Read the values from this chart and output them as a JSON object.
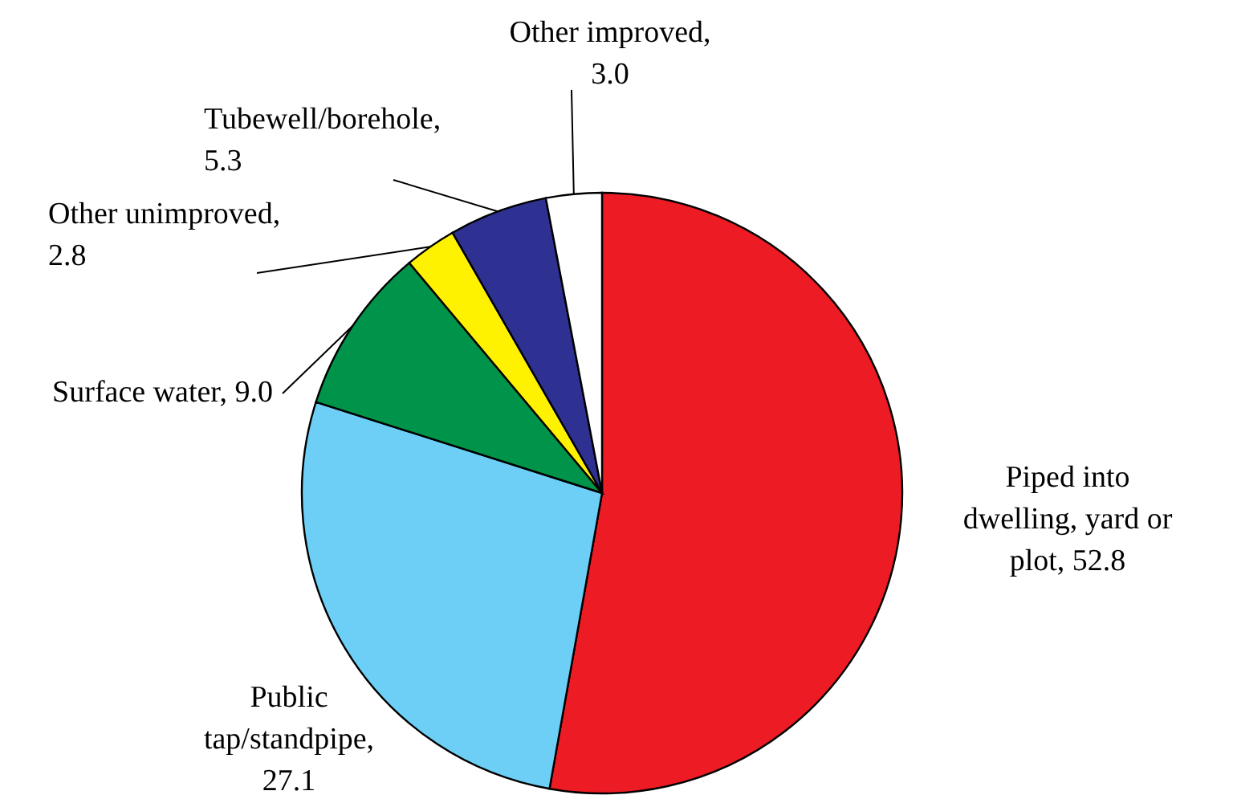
{
  "chart_data": {
    "type": "pie",
    "categories": [
      "Piped into dwelling, yard or plot, 52.8",
      "Public tap/standpipe, 27.1",
      "Surface water, 9.0",
      "Other unimproved, 2.8",
      "Tubewell/borehole, 5.3",
      "Other improved, 3.0"
    ],
    "values": [
      52.8,
      27.1,
      9.0,
      2.8,
      5.3,
      3.0
    ],
    "colors": [
      "#ed1c24",
      "#6dcff6",
      "#00934a",
      "#fff200",
      "#2e3192",
      "#ffffff"
    ]
  }
}
